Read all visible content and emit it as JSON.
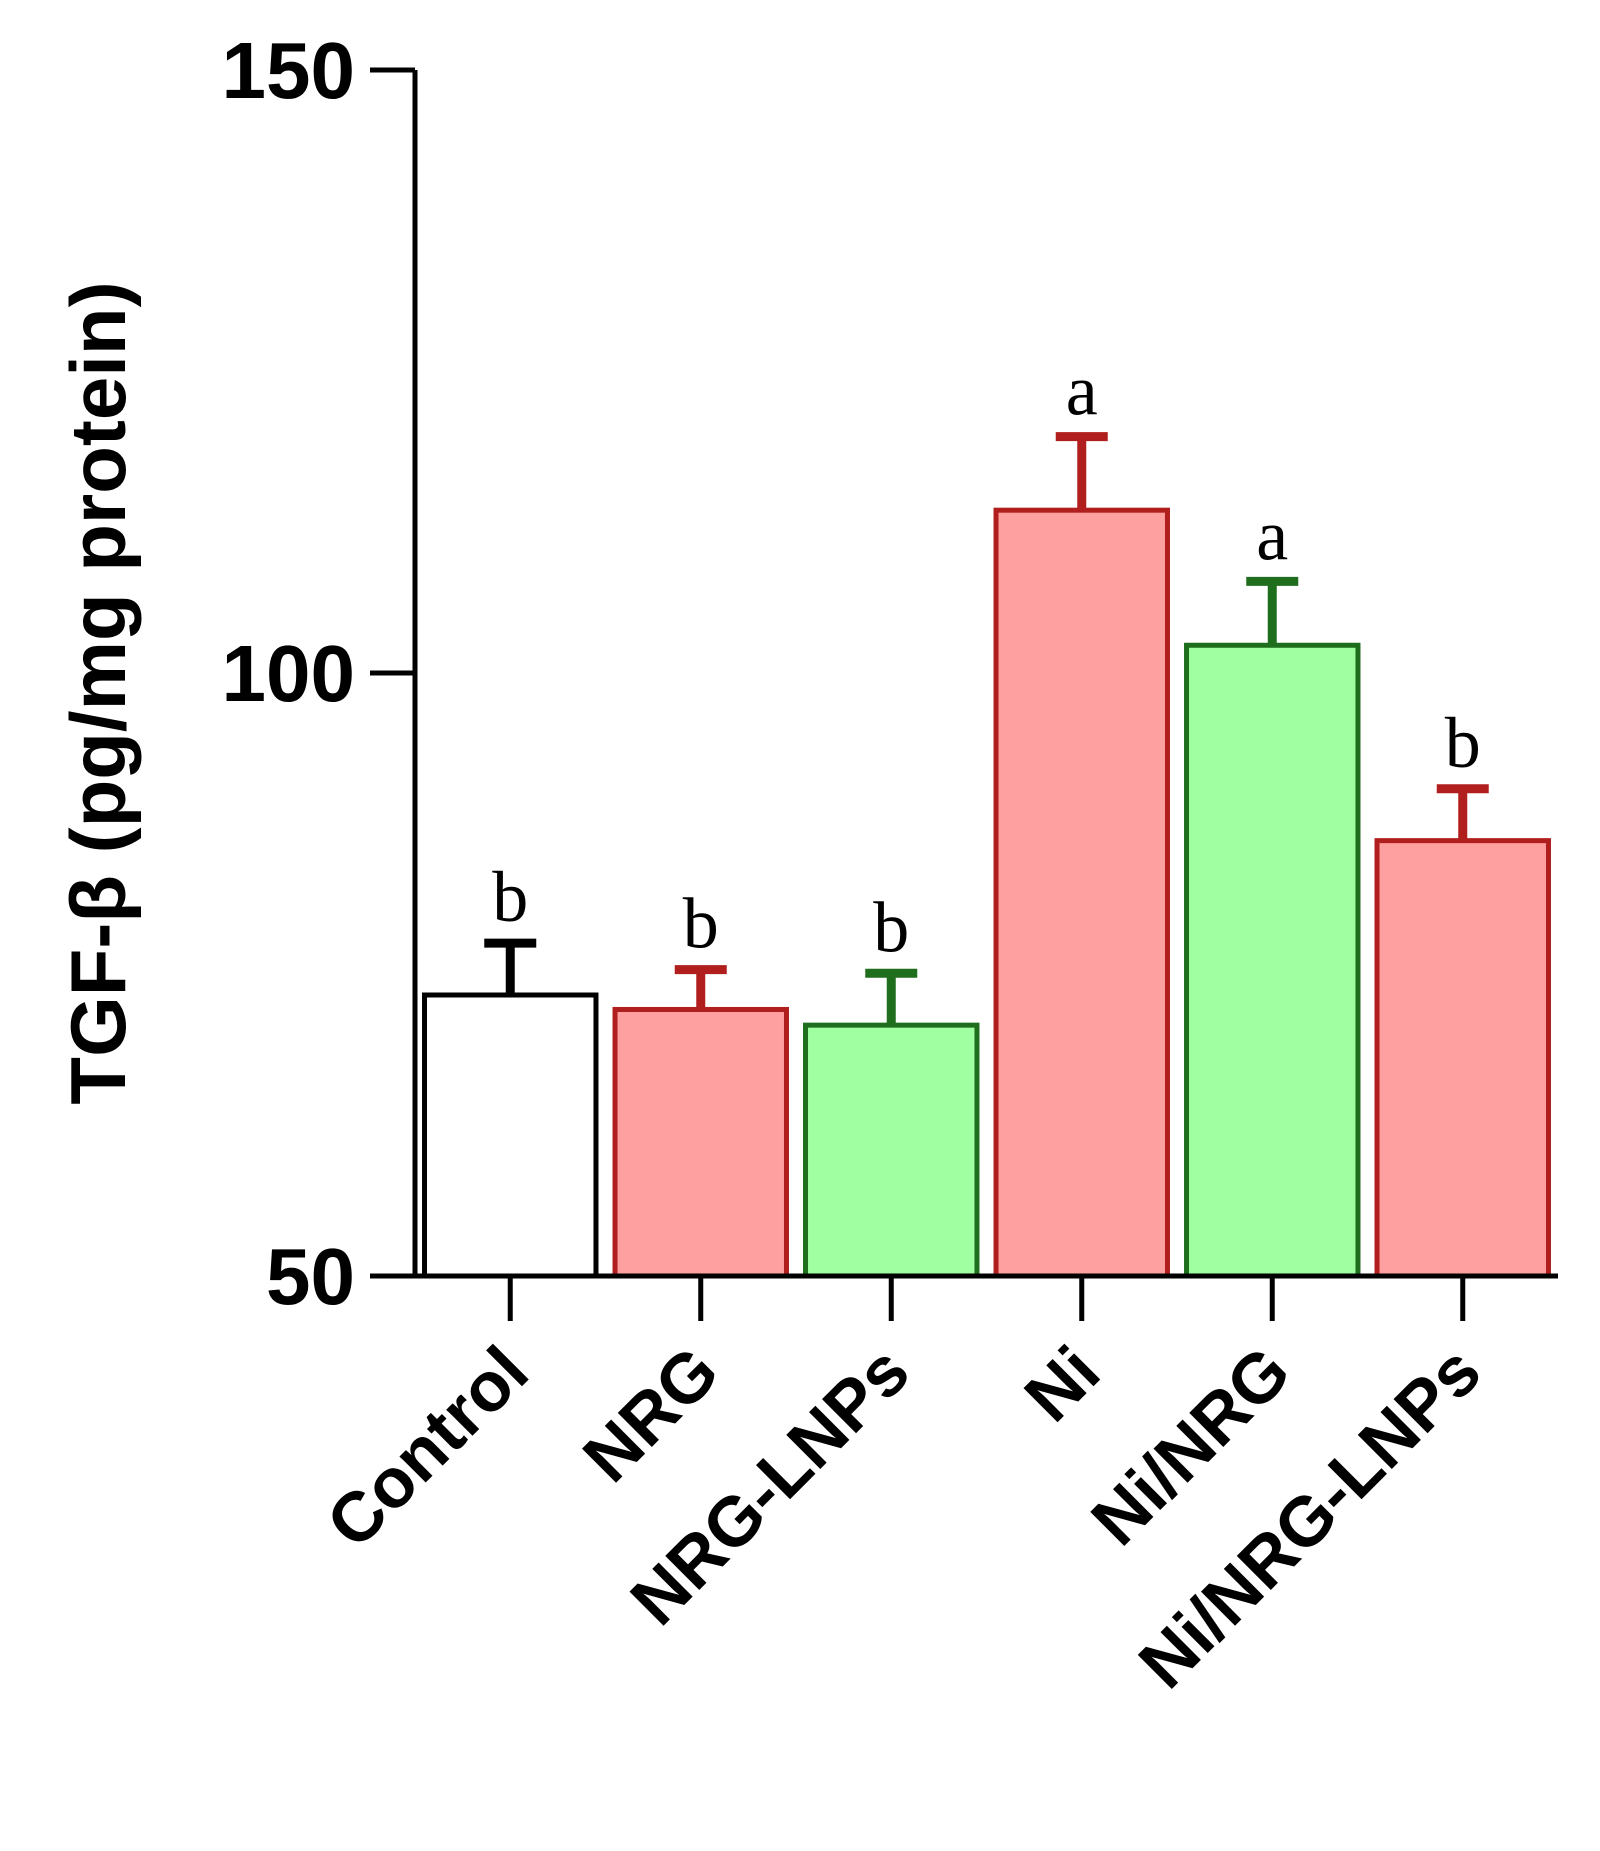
{
  "chart_data": {
    "type": "bar",
    "title": "",
    "xlabel": "",
    "ylabel": "TGF-β (pg/mg protein)",
    "ylim": [
      50,
      150
    ],
    "yticks": [
      50,
      100,
      150
    ],
    "grid": false,
    "categories": [
      "Control",
      "NRG",
      "NRG-LNPs",
      "Ni",
      "Ni/NRG",
      "Ni/NRG-LNPs"
    ],
    "values": [
      73.3,
      72.1,
      70.8,
      113.5,
      102.3,
      86.1
    ],
    "errors": [
      4.3,
      3.3,
      4.3,
      6.1,
      5.3,
      4.3
    ],
    "significance": [
      "b",
      "b",
      "b",
      "a",
      "a",
      "b"
    ],
    "colors": {
      "fills": [
        "#ffffff",
        "#ffa0a0",
        "#a0ffa0",
        "#ffa0a0",
        "#a0ffa0",
        "#ffa0a0"
      ],
      "strokes": [
        "#000000",
        "#b01e1e",
        "#1e6e1e",
        "#b01e1e",
        "#1e6e1e",
        "#b01e1e"
      ]
    }
  }
}
